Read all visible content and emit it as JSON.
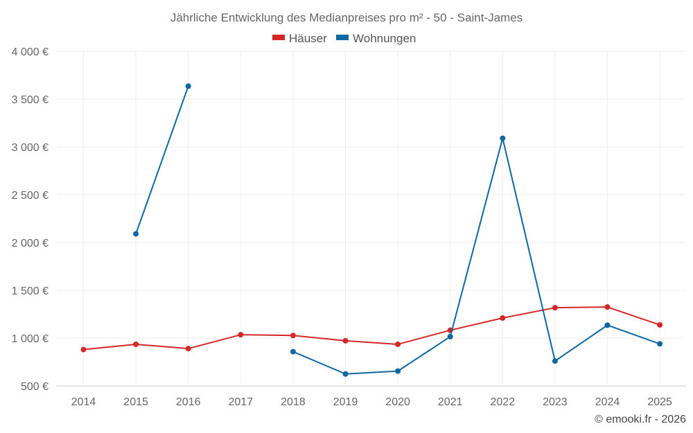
{
  "chart_data": {
    "type": "line",
    "title": "Jährliche Entwicklung des Medianpreises pro m² - 50 - Saint-James",
    "xlabel": "",
    "ylabel": "",
    "categories": [
      "2014",
      "2015",
      "2016",
      "2017",
      "2018",
      "2019",
      "2020",
      "2021",
      "2022",
      "2023",
      "2024",
      "2025"
    ],
    "ylim": [
      500,
      4000
    ],
    "y_ticks": [
      500,
      1000,
      1500,
      2000,
      2500,
      3000,
      3500,
      4000
    ],
    "y_tick_labels": [
      "500 €",
      "1 000 €",
      "1 500 €",
      "2 000 €",
      "2 500 €",
      "3 000 €",
      "3 500 €",
      "4 000 €"
    ],
    "grid": true,
    "legend_position": "top-center",
    "series": [
      {
        "name": "Häuser",
        "color": "#d62728",
        "values": [
          880,
          935,
          890,
          1035,
          1027,
          972,
          935,
          1082,
          1210,
          1318,
          1325,
          1138
        ]
      },
      {
        "name": "Wohnungen",
        "color": "#0d67a0",
        "values": [
          null,
          2090,
          3635,
          null,
          858,
          625,
          655,
          1015,
          3090,
          760,
          1135,
          940
        ]
      }
    ],
    "credit": "© emooki.fr - 2026"
  }
}
